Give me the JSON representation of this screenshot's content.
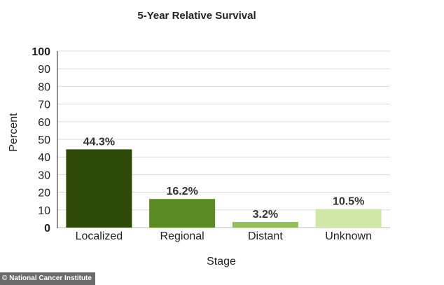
{
  "credit": "© National Cancer Institute",
  "chart_data": {
    "type": "bar",
    "title": "5-Year Relative Survival",
    "xlabel": "Stage",
    "ylabel": "Percent",
    "categories": [
      "Localized",
      "Regional",
      "Distant",
      "Unknown"
    ],
    "values": [
      44.3,
      16.2,
      3.2,
      10.5
    ],
    "value_labels": [
      "44.3%",
      "16.2%",
      "3.2%",
      "10.5%"
    ],
    "bar_colors": [
      "#2d4a06",
      "#5b8b23",
      "#94c05a",
      "#cfe8a7"
    ],
    "ylim": [
      0,
      100
    ],
    "yticks": [
      0,
      10,
      20,
      30,
      40,
      50,
      60,
      70,
      80,
      90,
      100
    ],
    "grid": true,
    "legend": "none"
  }
}
